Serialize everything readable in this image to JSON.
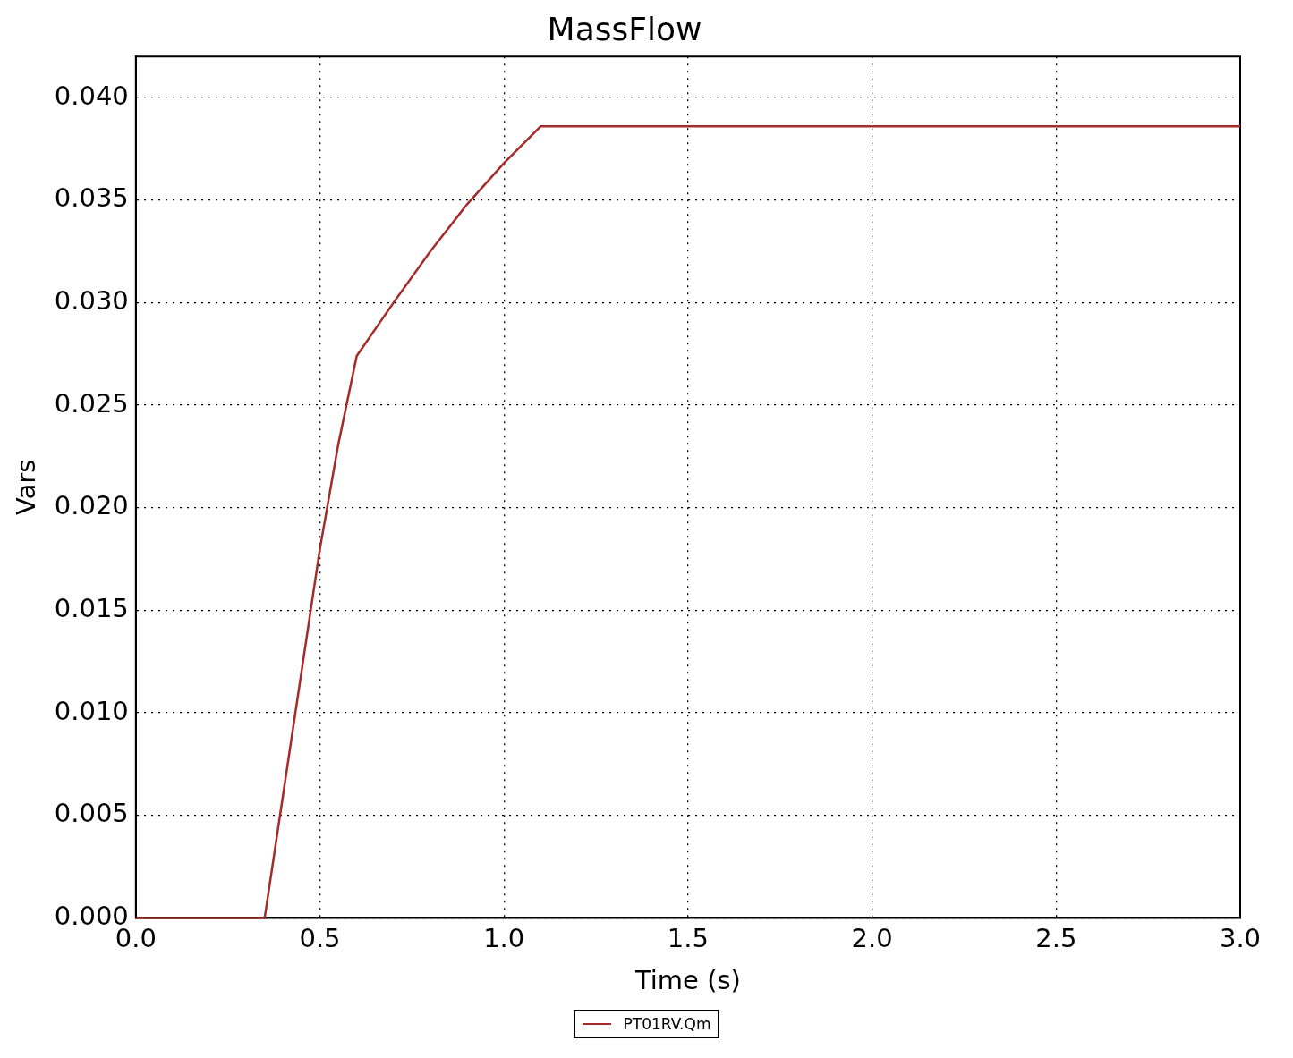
{
  "chart_data": {
    "type": "line",
    "title": "MassFlow",
    "xlabel": "Time (s)",
    "ylabel": "Vars",
    "x": [
      0,
      0.35,
      0.4,
      0.45,
      0.5,
      0.55,
      0.6,
      0.7,
      0.8,
      0.9,
      1.0,
      1.1,
      3.0
    ],
    "series": [
      {
        "name": "PT01RV.Qm",
        "color": "#a52a2a",
        "values": [
          0,
          0,
          0.006,
          0.012,
          0.018,
          0.0231,
          0.0274,
          0.03,
          0.0325,
          0.0348,
          0.0368,
          0.0386,
          0.0386
        ]
      }
    ],
    "xlim": [
      0,
      3
    ],
    "xticks": [
      {
        "value": 0,
        "label": "0.0"
      },
      0.5,
      {
        "value": 1,
        "label": "1.0"
      },
      1.5,
      {
        "value": 2,
        "label": "2.0"
      },
      2.5,
      {
        "value": 3,
        "label": "3.0"
      }
    ],
    "ylim": [
      0,
      0.042
    ],
    "yticks": [
      {
        "value": 0,
        "label": "0.000"
      },
      0.005,
      {
        "value": 0.01,
        "label": "0.010"
      },
      0.015,
      {
        "value": 0.02,
        "label": "0.020"
      },
      0.025,
      {
        "value": 0.03,
        "label": "0.030"
      },
      0.035,
      {
        "value": 0.04,
        "label": "0.040"
      }
    ],
    "grid": true,
    "legend": "bottom",
    "marker": "none",
    "line_style": "solid"
  }
}
